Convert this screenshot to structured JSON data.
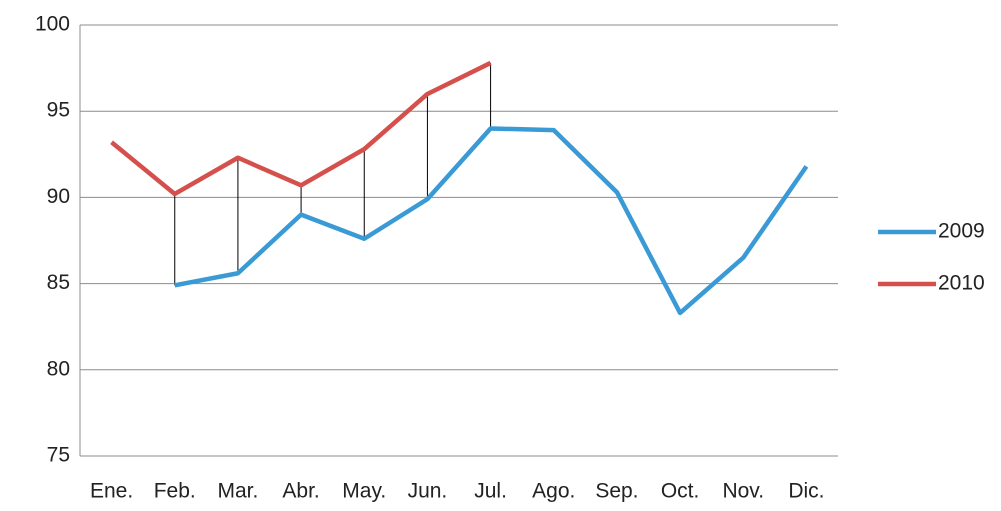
{
  "chart_data": {
    "type": "line",
    "categories": [
      "Ene.",
      "Feb.",
      "Mar.",
      "Abr.",
      "May.",
      "Jun.",
      "Jul.",
      "Ago.",
      "Sep.",
      "Oct.",
      "Nov.",
      "Dic."
    ],
    "series": [
      {
        "name": "2009",
        "color": "#3a9ad6",
        "values": [
          null,
          84.9,
          85.6,
          89.0,
          87.6,
          89.9,
          94.0,
          93.9,
          90.3,
          83.3,
          86.5,
          91.8
        ]
      },
      {
        "name": "2010",
        "color": "#d5504c",
        "values": [
          93.2,
          90.2,
          92.3,
          90.7,
          92.8,
          96.0,
          97.8,
          null,
          null,
          null,
          null,
          null
        ]
      }
    ],
    "ylim": [
      75,
      100
    ],
    "yticks": [
      75,
      80,
      85,
      90,
      95,
      100
    ],
    "grid": true,
    "hi_low_lines": true,
    "legend": "right"
  }
}
